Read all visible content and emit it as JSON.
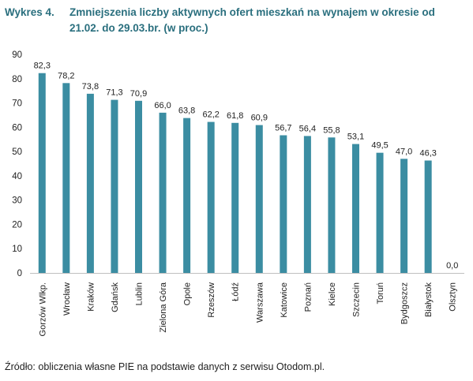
{
  "heading": {
    "prefix": "Wykres 4.",
    "title": "Zmniejszenia liczby aktywnych ofert mieszkań na wynajem w okresie od 21.02. do 29.03.br. (w proc.)"
  },
  "source": "Źródło: obliczenia własne PIE na podstawie danych z serwisu Otodom.pl.",
  "colors": {
    "bar": "#3b8da2",
    "heading": "#2a6f7e",
    "axis": "#bfbfbf"
  },
  "chart_data": {
    "type": "bar",
    "title": "Zmniejszenia liczby aktywnych ofert mieszkań na wynajem w okresie od 21.02. do 29.03.br. (w proc.)",
    "xlabel": "",
    "ylabel": "",
    "ylim": [
      0,
      90
    ],
    "yticks": [
      "0",
      "10",
      "20",
      "30",
      "40",
      "50",
      "60",
      "70",
      "80",
      "90"
    ],
    "grid": false,
    "categories": [
      "Gorzów Wlkp.",
      "Wrocław",
      "Kraków",
      "Gdańsk",
      "Lublin",
      "Zielona Góra",
      "Opole",
      "Rzeszów",
      "Łódź",
      "Warszawa",
      "Katowice",
      "Poznań",
      "Kielce",
      "Szczecin",
      "Toruń",
      "Bydgoszcz",
      "Białystok",
      "Olsztyn"
    ],
    "values": [
      82.3,
      78.2,
      73.8,
      71.3,
      70.9,
      66.0,
      63.8,
      62.2,
      61.8,
      60.9,
      56.7,
      56.4,
      55.8,
      53.1,
      49.5,
      47.0,
      46.3,
      0.0
    ],
    "value_labels": [
      "82,3",
      "78,2",
      "73,8",
      "71,3",
      "70,9",
      "66,0",
      "63,8",
      "62,2",
      "61,8",
      "60,9",
      "56,7",
      "56,4",
      "55,8",
      "53,1",
      "49,5",
      "47,0",
      "46,3",
      "0,0"
    ]
  }
}
